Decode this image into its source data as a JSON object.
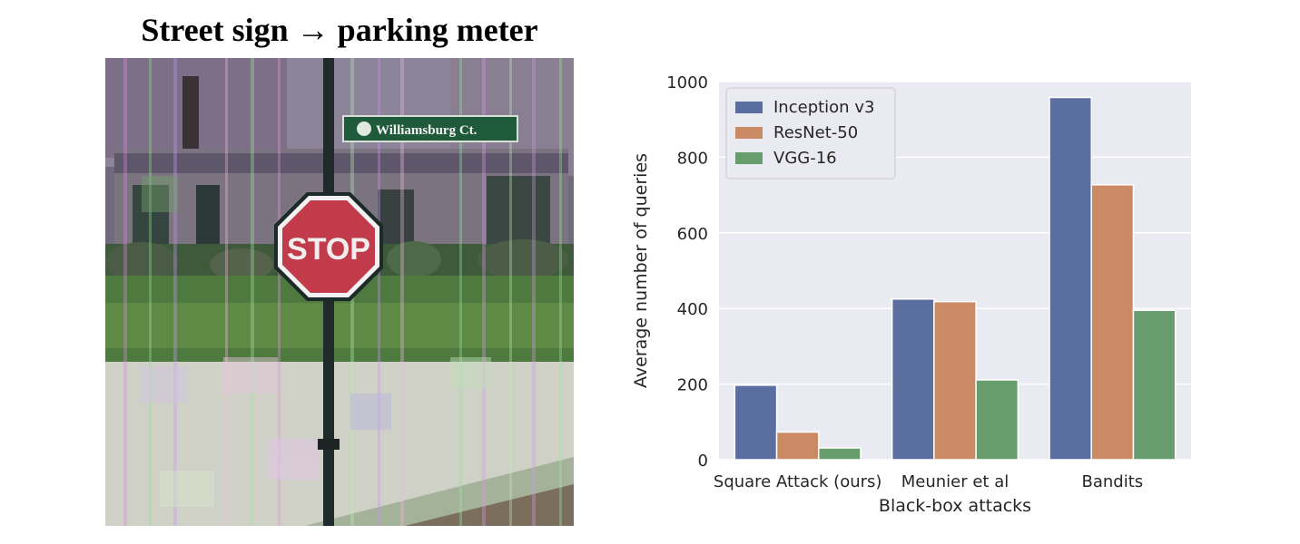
{
  "figure": {
    "title": "Street sign → parking meter",
    "photo": {
      "description_icon": "stop-sign-photo",
      "sign_text": "STOP",
      "street_sign_text": "Williamsburg Ct."
    }
  },
  "chart_data": {
    "type": "bar",
    "categories": [
      "Square Attack (ours)",
      "Meunier et al",
      "Bandits"
    ],
    "series": [
      {
        "name": "Inception v3",
        "color": "#5a6fa0",
        "values": [
          197,
          425,
          958
        ]
      },
      {
        "name": "ResNet-50",
        "color": "#c98a64",
        "values": [
          73,
          418,
          727
        ]
      },
      {
        "name": "VGG-16",
        "color": "#679c6d",
        "values": [
          31,
          211,
          395
        ]
      }
    ],
    "xlabel": "Black-box attacks",
    "ylabel": "Average number of queries",
    "ylim": [
      0,
      1000
    ],
    "yticks": [
      0,
      200,
      400,
      600,
      800,
      1000
    ],
    "grid": true,
    "legend_position": "top-left",
    "background": "#eaeaf2"
  }
}
